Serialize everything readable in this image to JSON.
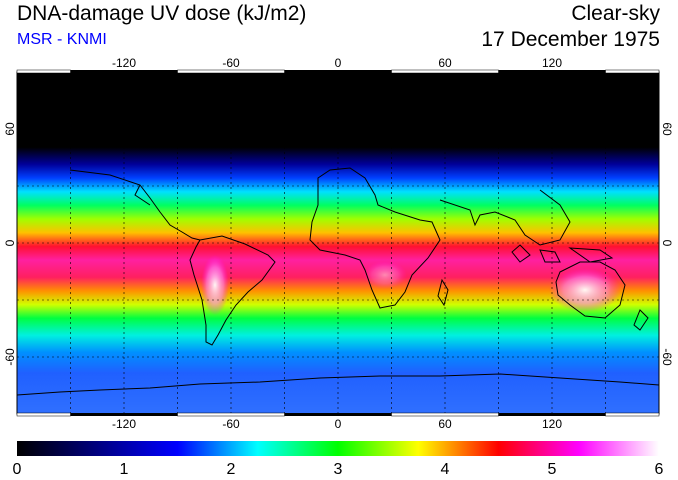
{
  "header": {
    "title": "DNA-damage UV dose (kJ/m2)",
    "source": "MSR - KNMI",
    "sky_condition": "Clear-sky",
    "date": "17 December 1975"
  },
  "map": {
    "projection": "equirectangular",
    "lon_range": [
      -180,
      180
    ],
    "lat_range": [
      -90,
      90
    ],
    "lon_ticks": [
      -120,
      -60,
      0,
      60,
      120
    ],
    "lon_tick_labels": [
      "-120",
      "-60",
      "0",
      "60",
      "120"
    ],
    "lat_ticks": [
      60,
      0,
      -60
    ],
    "lat_tick_labels": [
      "60",
      "0",
      "-60"
    ],
    "gridlines": "dashed every 30 degrees",
    "colors": {
      "polar_night": "#000000",
      "low": "#0000ff",
      "mid_low": "#00ffff",
      "mid": "#00ff00",
      "mid_high": "#ffff00",
      "high": "#ff0000",
      "very_high": "#ff00ff",
      "extreme": "#ffffff"
    }
  },
  "colorbar": {
    "min": 0,
    "max": 6,
    "tick_labels": [
      "0",
      "1",
      "2",
      "3",
      "4",
      "5",
      "6"
    ],
    "stops": [
      "#000000",
      "#000080",
      "#0000ff",
      "#00ffff",
      "#00ff00",
      "#ffff00",
      "#ff0000",
      "#ff00ff",
      "#ffffff"
    ]
  }
}
